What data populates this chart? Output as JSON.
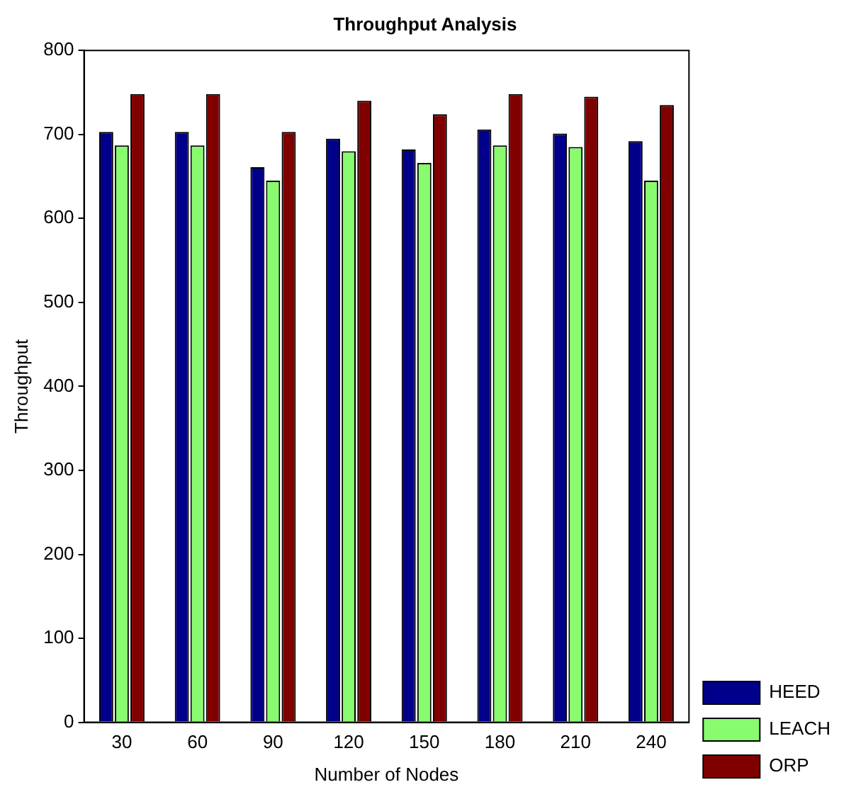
{
  "chart_data": {
    "type": "bar",
    "title": "Throughput Analysis",
    "xlabel": "Number of Nodes",
    "ylabel": "Throughput",
    "categories": [
      "30",
      "60",
      "90",
      "120",
      "150",
      "180",
      "210",
      "240"
    ],
    "series": [
      {
        "name": "HEED",
        "color": "#00008b",
        "values": [
          703,
          703,
          661,
          695,
          682,
          706,
          701,
          692
        ]
      },
      {
        "name": "LEACH",
        "color": "#88fb6f",
        "values": [
          687,
          687,
          645,
          680,
          666,
          687,
          685,
          645
        ]
      },
      {
        "name": "ORP",
        "color": "#800000",
        "values": [
          748,
          748,
          703,
          740,
          724,
          748,
          745,
          735
        ]
      }
    ],
    "ylim": [
      0,
      800
    ],
    "yticks": [
      0,
      100,
      200,
      300,
      400,
      500,
      600,
      700,
      800
    ],
    "grid": false,
    "legend": "bottom right"
  }
}
